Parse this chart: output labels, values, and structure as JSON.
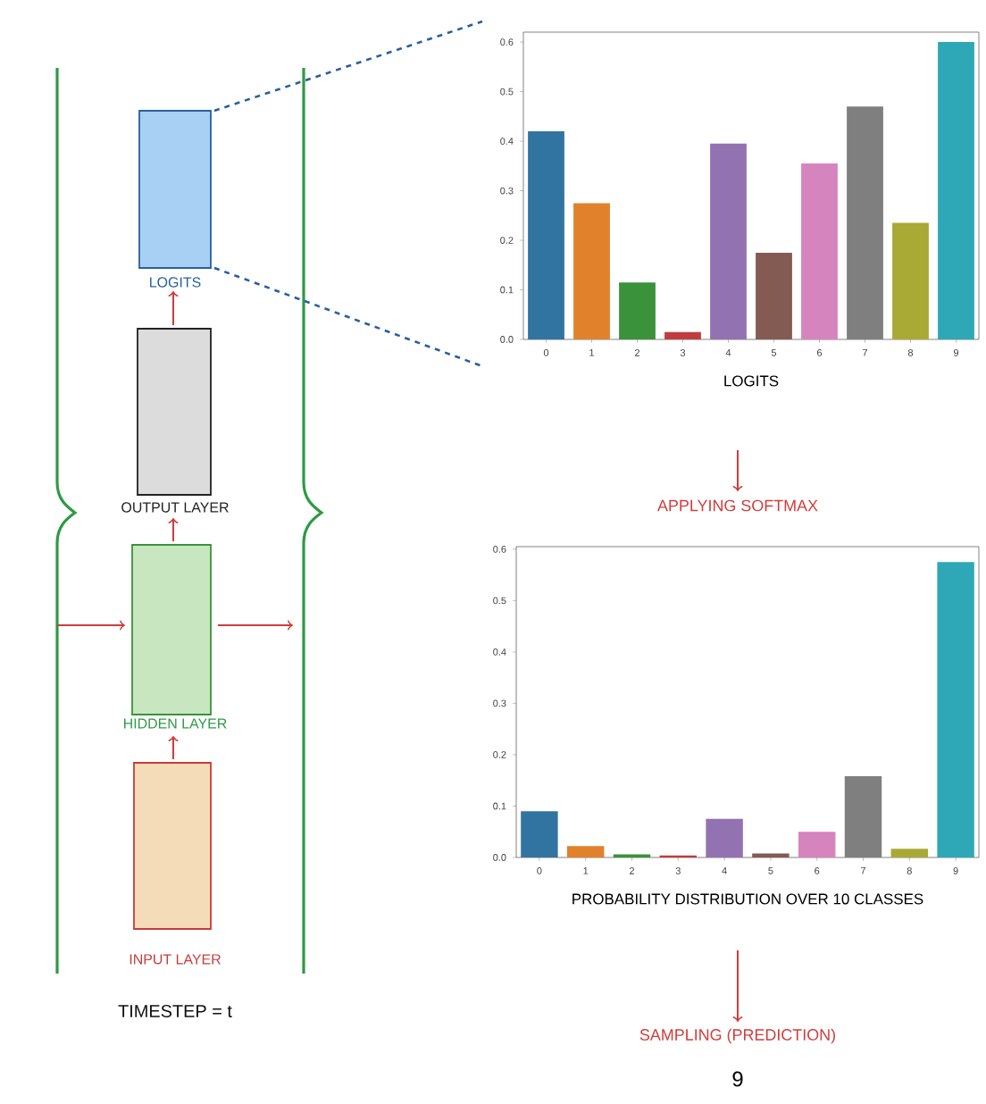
{
  "chart_data": [
    {
      "type": "other",
      "annotations": [
        "LOGITS",
        "OUTPUT LAYER",
        "HIDDEN LAYER",
        "INPUT LAYER",
        "TIMESTEP = t"
      ]
    },
    {
      "type": "bar",
      "xlabel": "LOGITS",
      "annotations": [
        "APPLYING SOFTMAX"
      ],
      "categories": [
        "0",
        "1",
        "2",
        "3",
        "4",
        "5",
        "6",
        "7",
        "8",
        "9"
      ],
      "values": [
        0.42,
        0.275,
        0.115,
        0.015,
        0.395,
        0.175,
        0.355,
        0.47,
        0.235,
        0.6
      ],
      "colors": [
        "#3274a1",
        "#e1812c",
        "#3a923a",
        "#c03d3e",
        "#9372b2",
        "#845b53",
        "#d684bd",
        "#7f7f7f",
        "#a9aa35",
        "#2ea8b6"
      ],
      "ylim": [
        0,
        0.62
      ],
      "yticks": [
        {
          "value": 0,
          "label": "0.0"
        },
        {
          "value": 0.1,
          "label": "0.1"
        },
        {
          "value": 0.2,
          "label": "0.2"
        },
        {
          "value": 0.3,
          "label": "0.3"
        },
        {
          "value": 0.4,
          "label": "0.4"
        },
        {
          "value": 0.5,
          "label": "0.5"
        },
        {
          "value": 0.6,
          "label": "0.6"
        }
      ]
    },
    {
      "type": "bar",
      "xlabel": "PROBABILITY DISTRIBUTION OVER 10 CLASSES",
      "annotations": [
        "SAMPLING (PREDICTION)",
        "9"
      ],
      "categories": [
        "0",
        "1",
        "2",
        "3",
        "4",
        "5",
        "6",
        "7",
        "8",
        "9"
      ],
      "values": [
        0.09,
        0.022,
        0.006,
        0.004,
        0.075,
        0.008,
        0.05,
        0.158,
        0.017,
        0.575
      ],
      "colors": [
        "#3274a1",
        "#e1812c",
        "#3a923a",
        "#c03d3e",
        "#9372b2",
        "#845b53",
        "#d684bd",
        "#7f7f7f",
        "#a9aa35",
        "#2ea8b6"
      ],
      "ylim": [
        0,
        0.605
      ],
      "yticks": [
        {
          "value": 0,
          "label": "0.0"
        },
        {
          "value": 0.1,
          "label": "0.1"
        },
        {
          "value": 0.2,
          "label": "0.2"
        },
        {
          "value": 0.3,
          "label": "0.3"
        },
        {
          "value": 0.4,
          "label": "0.4"
        },
        {
          "value": 0.5,
          "label": "0.5"
        },
        {
          "value": 0.6,
          "label": "0.6"
        }
      ]
    }
  ]
}
